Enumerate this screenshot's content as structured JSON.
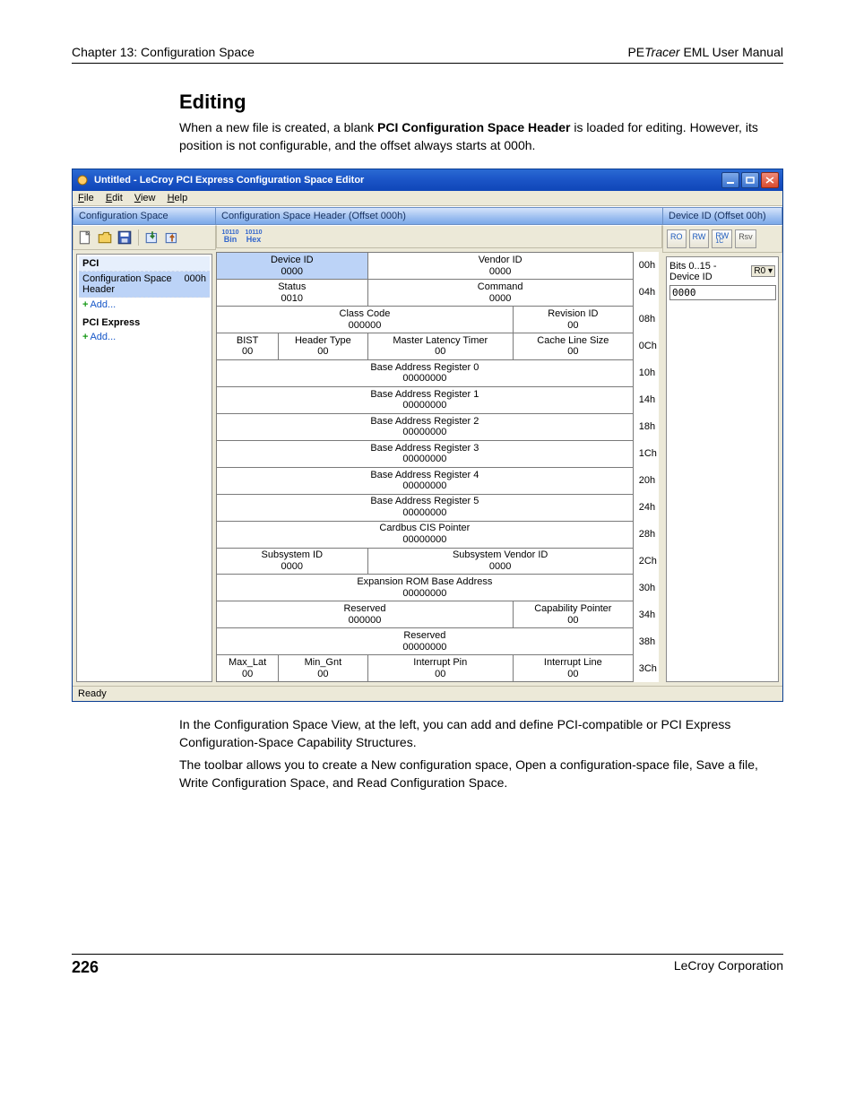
{
  "page": {
    "chapter": "Chapter 13: Configuration Space",
    "manual_prefix": "PE",
    "manual_italic": "Tracer",
    "manual_suffix": " EML User Manual",
    "number": "226",
    "company": "LeCroy Corporation"
  },
  "section": {
    "title": "Editing",
    "p1a": "When a new file is created, a blank ",
    "p1b": "PCI Configuration Space Header",
    "p1c": " is loaded for editing. However, its position is not configurable, and the offset always starts at 000h.",
    "p2": "In the Configuration Space View, at the left, you can add and define PCI-compatible or PCI Express Configuration-Space Capability Structures.",
    "p3": "The toolbar allows you to create a New configuration space, Open a configuration-space file, Save a file, Write Configuration Space, and Read Configuration Space."
  },
  "app": {
    "title": "Untitled - LeCroy PCI Express Configuration Space Editor",
    "menus": {
      "file": "File",
      "edit": "Edit",
      "view": "View",
      "help": "Help"
    },
    "status": "Ready",
    "left": {
      "header": "Configuration Space",
      "tb_bin_sup": "10110",
      "tb_bin": "Bin",
      "tb_hex_sup": "10110",
      "tb_hex": "Hex",
      "pci_title": "PCI",
      "cfg_label": "Configuration Space Header",
      "cfg_offset": "000h",
      "add": "Add...",
      "pcie_title": "PCI Express"
    },
    "mid": {
      "header": "Configuration Space Header (Offset 000h)",
      "rows": [
        {
          "offset": "00h",
          "cells": [
            {
              "w": 2,
              "label": "Device ID",
              "val": "0000",
              "selected": true
            },
            {
              "w": 2,
              "label": "Vendor ID",
              "val": "0000"
            }
          ]
        },
        {
          "offset": "04h",
          "cells": [
            {
              "w": 2,
              "label": "Status",
              "val": "0010"
            },
            {
              "w": 2,
              "label": "Command",
              "val": "0000"
            }
          ]
        },
        {
          "offset": "08h",
          "cells": [
            {
              "w": 3,
              "label": "Class Code",
              "val": "000000"
            },
            {
              "w": 1,
              "label": "Revision ID",
              "val": "00"
            }
          ]
        },
        {
          "offset": "0Ch",
          "cells": [
            {
              "w": 1,
              "label": "BIST",
              "val": "00"
            },
            {
              "w": 1,
              "label": "Header Type",
              "val": "00"
            },
            {
              "w": 1,
              "label": "Master Latency Timer",
              "val": "00"
            },
            {
              "w": 1,
              "label": "Cache Line Size",
              "val": "00"
            }
          ]
        },
        {
          "offset": "10h",
          "cells": [
            {
              "w": 4,
              "label": "Base Address Register 0",
              "val": "00000000"
            }
          ]
        },
        {
          "offset": "14h",
          "cells": [
            {
              "w": 4,
              "label": "Base Address Register 1",
              "val": "00000000"
            }
          ]
        },
        {
          "offset": "18h",
          "cells": [
            {
              "w": 4,
              "label": "Base Address Register 2",
              "val": "00000000"
            }
          ]
        },
        {
          "offset": "1Ch",
          "cells": [
            {
              "w": 4,
              "label": "Base Address Register 3",
              "val": "00000000"
            }
          ]
        },
        {
          "offset": "20h",
          "cells": [
            {
              "w": 4,
              "label": "Base Address Register 4",
              "val": "00000000"
            }
          ]
        },
        {
          "offset": "24h",
          "cells": [
            {
              "w": 4,
              "label": "Base Address Register 5",
              "val": "00000000"
            }
          ]
        },
        {
          "offset": "28h",
          "cells": [
            {
              "w": 4,
              "label": "Cardbus CIS Pointer",
              "val": "00000000"
            }
          ]
        },
        {
          "offset": "2Ch",
          "cells": [
            {
              "w": 2,
              "label": "Subsystem ID",
              "val": "0000"
            },
            {
              "w": 2,
              "label": "Subsystem Vendor ID",
              "val": "0000"
            }
          ]
        },
        {
          "offset": "30h",
          "cells": [
            {
              "w": 4,
              "label": "Expansion ROM Base Address",
              "val": "00000000"
            }
          ]
        },
        {
          "offset": "34h",
          "cells": [
            {
              "w": 3,
              "label": "Reserved",
              "val": "000000"
            },
            {
              "w": 1,
              "label": "Capability Pointer",
              "val": "00"
            }
          ]
        },
        {
          "offset": "38h",
          "cells": [
            {
              "w": 4,
              "label": "Reserved",
              "val": "00000000"
            }
          ]
        },
        {
          "offset": "3Ch",
          "cells": [
            {
              "w": 1,
              "label": "Max_Lat",
              "val": "00"
            },
            {
              "w": 1,
              "label": "Min_Gnt",
              "val": "00"
            },
            {
              "w": 1,
              "label": "Interrupt Pin",
              "val": "00"
            },
            {
              "w": 1,
              "label": "Interrupt Line",
              "val": "00"
            }
          ]
        }
      ]
    },
    "right": {
      "header": "Device ID (Offset 00h)",
      "btn_ro": "RO",
      "btn_rw": "RW",
      "btn_rw1c": "RW\n1C",
      "btn_rsv": "Rsv",
      "bits_label": "Bits 0..15 - Device ID",
      "access": "R0",
      "value": "0000"
    }
  }
}
